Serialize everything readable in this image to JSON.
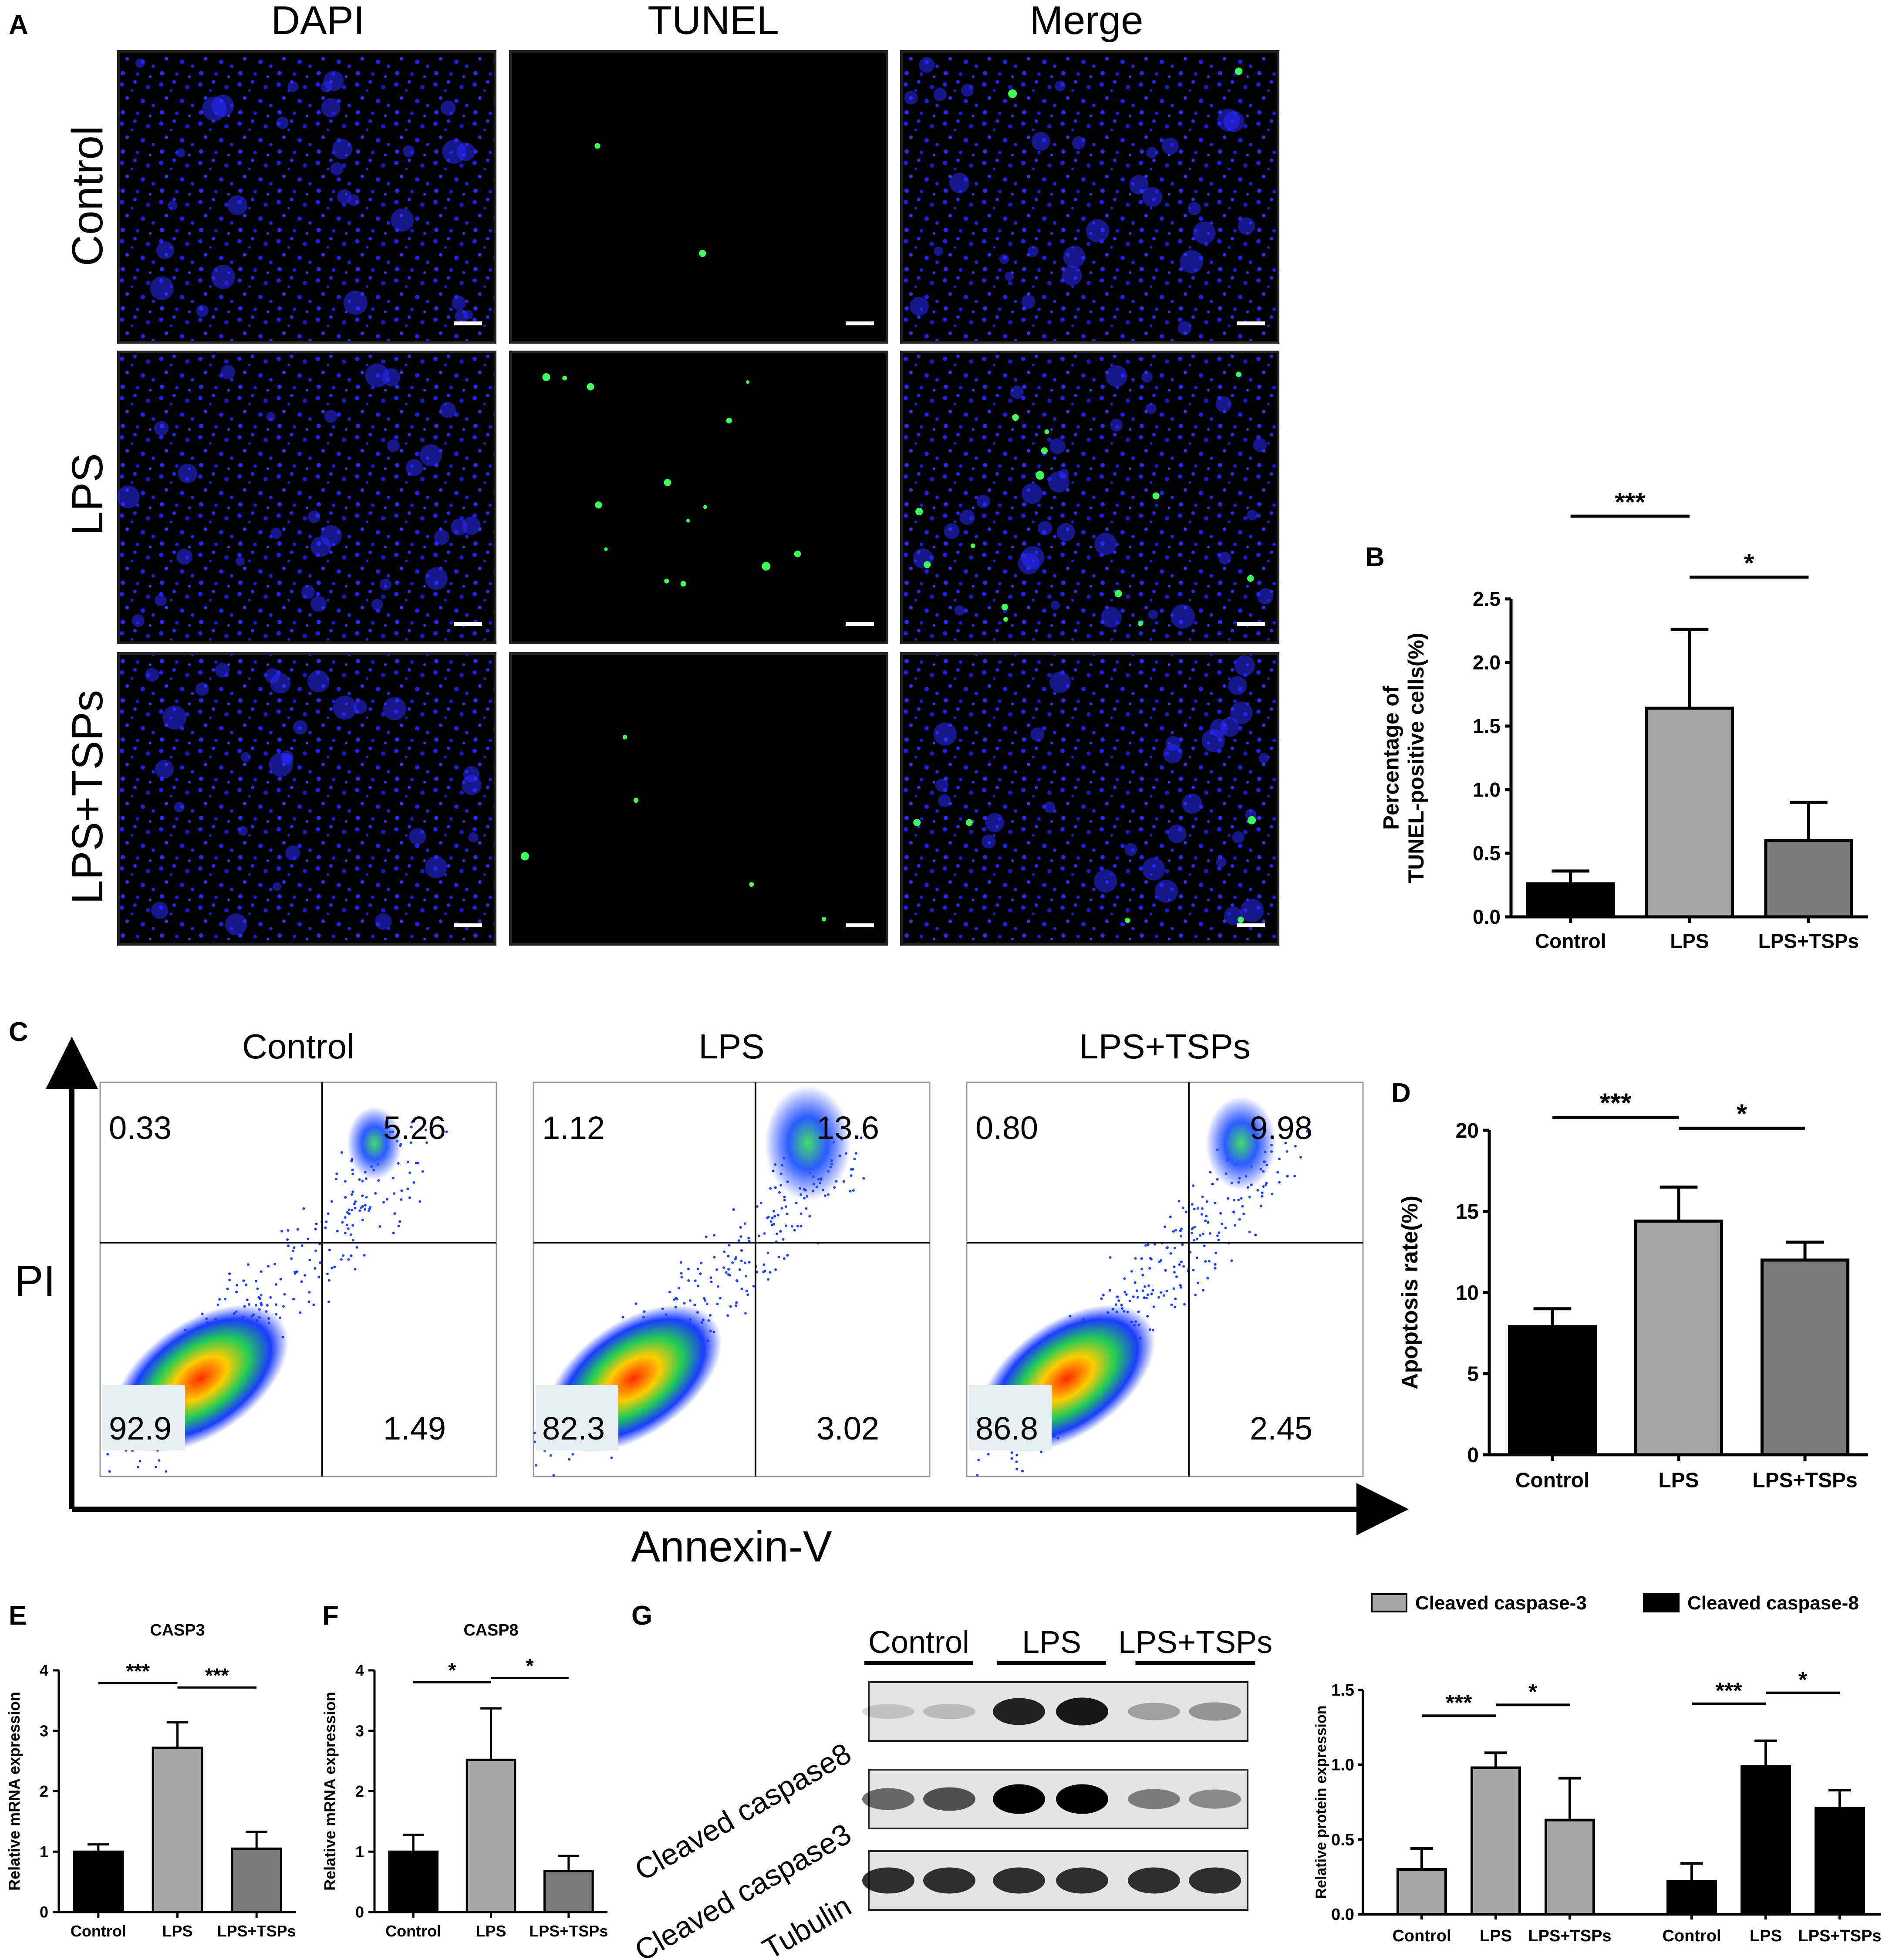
{
  "panel_letters": {
    "a": "A",
    "b": "B",
    "c": "C",
    "d": "D",
    "e": "E",
    "f": "F",
    "g": "G"
  },
  "microscopy": {
    "columns": [
      "DAPI",
      "TUNEL",
      "Merge"
    ],
    "rows": [
      "Control",
      "LPS",
      "LPS+TSPs"
    ],
    "colors": {
      "dapi": "#1a1aff",
      "tunel": "#22ff44",
      "background": "#000000"
    }
  },
  "flow": {
    "titles": [
      "Control",
      "LPS",
      "LPS+TSPs"
    ],
    "quadrants": [
      {
        "ul": "0.33",
        "ur": "5.26",
        "ll": "92.9",
        "lr": "1.49"
      },
      {
        "ul": "1.12",
        "ur": "13.6",
        "ll": "82.3",
        "lr": "3.02"
      },
      {
        "ul": "0.80",
        "ur": "9.98",
        "ll": "86.8",
        "lr": "2.45"
      }
    ],
    "xlabel": "Annexin-V",
    "ylabel": "PI"
  },
  "western": {
    "groups": [
      "Control",
      "LPS",
      "LPS+TSPs"
    ],
    "bands": [
      "Cleaved caspase8",
      "Cleaved caspase3",
      "Tubulin"
    ]
  },
  "colors": {
    "control": "#000000",
    "lps": "#a6a6a6",
    "lps_tsps": "#7a7a7a"
  },
  "chart_data": [
    {
      "id": "B",
      "type": "bar",
      "categories": [
        "Control",
        "LPS",
        "LPS+TSPs"
      ],
      "values": [
        0.26,
        1.64,
        0.6
      ],
      "errors": [
        0.1,
        0.62,
        0.3
      ],
      "ylabel": "Percentage of\nTUNEL-positive cells(%)",
      "ylim": [
        0,
        2.5
      ],
      "yticks": [
        "0.0",
        "0.5",
        "1.0",
        "1.5",
        "2.0",
        "2.5"
      ],
      "significance": [
        {
          "from": 0,
          "to": 1,
          "label": "***"
        },
        {
          "from": 1,
          "to": 2,
          "label": "*"
        }
      ]
    },
    {
      "id": "D",
      "type": "bar",
      "categories": [
        "Control",
        "LPS",
        "LPS+TSPs"
      ],
      "values": [
        7.9,
        14.4,
        12.0
      ],
      "errors": [
        1.1,
        2.1,
        1.1
      ],
      "ylabel": "Apoptosis rate(%)",
      "ylim": [
        0,
        20
      ],
      "yticks": [
        "0",
        "5",
        "10",
        "15",
        "20"
      ],
      "significance": [
        {
          "from": 0,
          "to": 1,
          "label": "***"
        },
        {
          "from": 1,
          "to": 2,
          "label": "*"
        }
      ]
    },
    {
      "id": "E",
      "type": "bar",
      "title": "CASP3",
      "categories": [
        "Control",
        "LPS",
        "LPS+TSPs"
      ],
      "values": [
        1.0,
        2.72,
        1.05
      ],
      "errors": [
        0.12,
        0.42,
        0.28
      ],
      "ylabel": "Relative mRNA expression",
      "ylim": [
        0,
        4
      ],
      "yticks": [
        "0",
        "1",
        "2",
        "3",
        "4"
      ],
      "significance": [
        {
          "from": 0,
          "to": 1,
          "label": "***"
        },
        {
          "from": 1,
          "to": 2,
          "label": "***"
        }
      ]
    },
    {
      "id": "F",
      "type": "bar",
      "title": "CASP8",
      "categories": [
        "Control",
        "LPS",
        "LPS+TSPs"
      ],
      "values": [
        1.0,
        2.52,
        0.68
      ],
      "errors": [
        0.28,
        0.85,
        0.25
      ],
      "ylabel": "Relative mRNA expression",
      "ylim": [
        0,
        4
      ],
      "yticks": [
        "0",
        "1",
        "2",
        "3",
        "4"
      ],
      "significance": [
        {
          "from": 0,
          "to": 1,
          "label": "*"
        },
        {
          "from": 1,
          "to": 2,
          "label": "*"
        }
      ]
    },
    {
      "id": "G",
      "type": "bar",
      "categories": [
        "Control",
        "LPS",
        "LPS+TSPs"
      ],
      "series": [
        {
          "name": "Cleaved caspase-3",
          "values": [
            0.3,
            0.98,
            0.63
          ],
          "errors": [
            0.14,
            0.1,
            0.28
          ]
        },
        {
          "name": "Cleaved caspase-8",
          "values": [
            0.22,
            0.99,
            0.71
          ],
          "errors": [
            0.12,
            0.17,
            0.12
          ]
        }
      ],
      "ylabel": "Relative protein expression",
      "ylim": [
        0,
        1.5
      ],
      "yticks": [
        "0.0",
        "0.5",
        "1.0",
        "1.5"
      ],
      "significance": [
        [
          {
            "from": 0,
            "to": 1,
            "label": "***"
          },
          {
            "from": 1,
            "to": 2,
            "label": "*"
          }
        ],
        [
          {
            "from": 0,
            "to": 1,
            "label": "***"
          },
          {
            "from": 1,
            "to": 2,
            "label": "*"
          }
        ]
      ]
    }
  ]
}
